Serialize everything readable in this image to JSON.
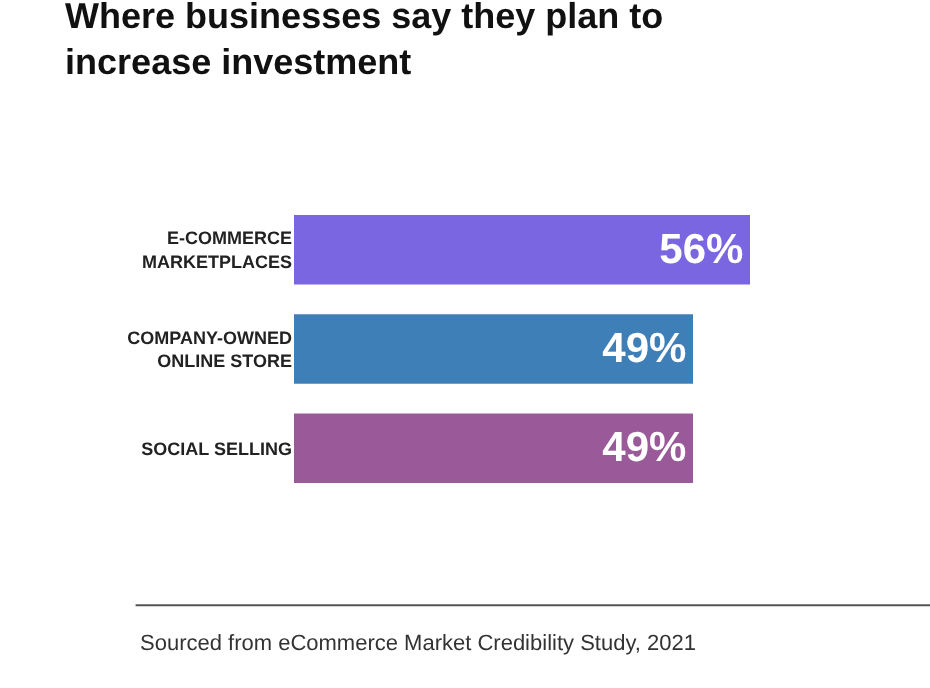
{
  "chart_data": {
    "type": "bar",
    "orientation": "horizontal",
    "title": "Where businesses say they plan to increase investment",
    "categories": [
      "E-COMMERCE MARKETPLACES",
      "COMPANY-OWNED ONLINE STORE",
      "SOCIAL SELLING"
    ],
    "values": [
      56,
      49,
      49
    ],
    "value_labels": [
      "56%",
      "49%",
      "49%"
    ],
    "colors": [
      "#7a66e0",
      "#3f7fb8",
      "#9a5a9a"
    ],
    "annotations": [
      "Sourced from eCommerce Market Credibility Study, 2021"
    ]
  }
}
